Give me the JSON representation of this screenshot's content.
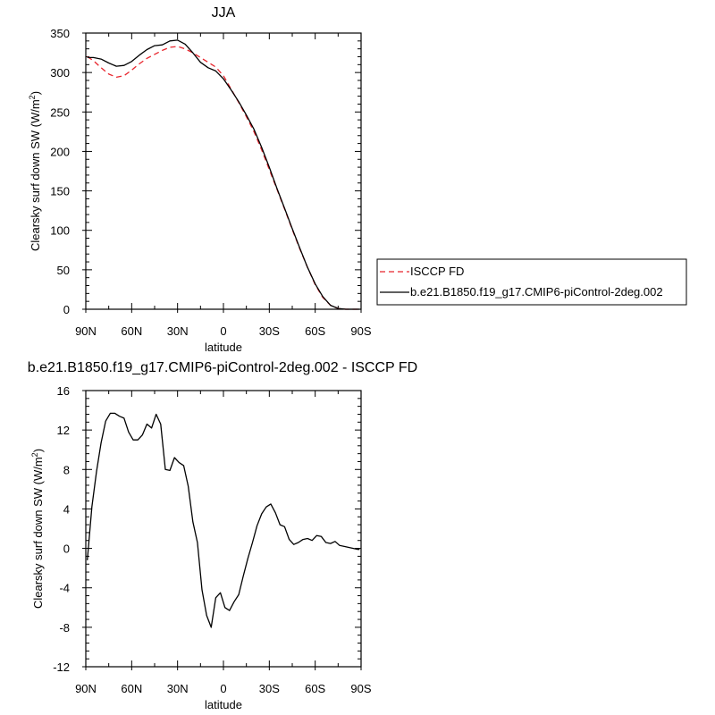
{
  "colors": {
    "model": "#000000",
    "obs": "#e8242c",
    "axis": "#000000"
  },
  "chart_data": [
    {
      "type": "line",
      "title": "JJA",
      "xlabel": "latitude",
      "ylabel": "Clearsky surf down SW (W/m",
      "ylabel_sup": "2",
      "ylabel_close": ")",
      "xlim": [
        -90,
        90
      ],
      "ylim": [
        0,
        350
      ],
      "x_tick_values": [
        -90,
        -60,
        -30,
        0,
        30,
        60,
        90
      ],
      "x_tick_labels": [
        "90N",
        "60N",
        "30N",
        "0",
        "30S",
        "60S",
        "90S"
      ],
      "y_tick_values": [
        0,
        50,
        100,
        150,
        200,
        250,
        300,
        350
      ],
      "y_tick_labels": [
        "0",
        "50",
        "100",
        "150",
        "200",
        "250",
        "300",
        "350"
      ],
      "legend_position": "right",
      "series": [
        {
          "name": "ISCCP FD",
          "style": "dashed",
          "color": "#e8242c",
          "x": [
            -89,
            -85,
            -80,
            -75,
            -70,
            -65,
            -60,
            -55,
            -50,
            -45,
            -40,
            -35,
            -30,
            -25,
            -20,
            -15,
            -10,
            -5,
            0,
            5,
            10,
            15,
            20,
            25,
            30,
            35,
            40,
            45,
            50,
            55,
            60,
            65,
            70,
            75,
            80,
            85,
            89
          ],
          "y": [
            320,
            315,
            306,
            298,
            294,
            296,
            303,
            311,
            318,
            323,
            328,
            332,
            333,
            330,
            325,
            319,
            313,
            307,
            296,
            279,
            262,
            244,
            225,
            202,
            177,
            152,
            127,
            101,
            76,
            53,
            31,
            15,
            5,
            1,
            0,
            0,
            0
          ]
        },
        {
          "name": "b.e21.B1850.f19_g17.CMIP6-piControl-2deg.002",
          "style": "solid",
          "color": "#000000",
          "x": [
            -89,
            -85,
            -80,
            -75,
            -70,
            -65,
            -60,
            -55,
            -50,
            -45,
            -40,
            -35,
            -30,
            -25,
            -20,
            -15,
            -10,
            -5,
            0,
            5,
            10,
            15,
            20,
            25,
            30,
            35,
            40,
            45,
            50,
            55,
            60,
            65,
            70,
            75,
            80,
            85,
            89
          ],
          "y": [
            319,
            319,
            317,
            312,
            308,
            309,
            314,
            322,
            329,
            334,
            335,
            340,
            341,
            336,
            325,
            313,
            306,
            302,
            292,
            278,
            263,
            246,
            228,
            205,
            180,
            153,
            128,
            102,
            77,
            53,
            32,
            16,
            5,
            1,
            0,
            0,
            0
          ]
        }
      ]
    },
    {
      "type": "line",
      "title": "b.e21.B1850.f19_g17.CMIP6-piControl-2deg.002 - ISCCP FD",
      "xlabel": "latitude",
      "ylabel": "Clearsky surf down SW (W/m",
      "ylabel_sup": "2",
      "ylabel_close": ")",
      "xlim": [
        -90,
        90
      ],
      "ylim": [
        -12,
        16
      ],
      "x_tick_values": [
        -90,
        -60,
        -30,
        0,
        30,
        60,
        90
      ],
      "x_tick_labels": [
        "90N",
        "60N",
        "30N",
        "0",
        "30S",
        "60S",
        "90S"
      ],
      "y_tick_values": [
        -12,
        -8,
        -4,
        0,
        4,
        8,
        12,
        16
      ],
      "y_tick_labels": [
        "-12",
        "-8",
        "-4",
        "0",
        "4",
        "8",
        "12",
        "16"
      ],
      "series": [
        {
          "style": "solid",
          "color": "#000000",
          "x": [
            -89,
            -86,
            -83,
            -80,
            -77,
            -74,
            -71,
            -68,
            -65,
            -62,
            -59,
            -56,
            -53,
            -50,
            -47,
            -44,
            -41,
            -38,
            -35,
            -32,
            -29,
            -26,
            -23,
            -20,
            -17,
            -14,
            -11,
            -8,
            -5,
            -2,
            1,
            4,
            7,
            10,
            13,
            16,
            19,
            22,
            25,
            28,
            31,
            34,
            37,
            40,
            43,
            46,
            49,
            52,
            55,
            58,
            61,
            64,
            67,
            70,
            73,
            76,
            79,
            82,
            85,
            88,
            89
          ],
          "y": [
            -1.2,
            4.2,
            7.8,
            10.7,
            12.9,
            13.7,
            13.7,
            13.4,
            13.2,
            11.8,
            11.0,
            11.0,
            11.5,
            12.6,
            12.2,
            13.6,
            12.6,
            8.0,
            7.9,
            9.2,
            8.7,
            8.4,
            6.3,
            2.7,
            0.6,
            -4.2,
            -6.8,
            -8.0,
            -5.0,
            -4.5,
            -6.0,
            -6.3,
            -5.4,
            -4.7,
            -2.8,
            -1.0,
            0.6,
            2.3,
            3.5,
            4.2,
            4.5,
            3.6,
            2.4,
            2.2,
            0.9,
            0.4,
            0.6,
            0.9,
            1.0,
            0.8,
            1.3,
            1.2,
            0.6,
            0.5,
            0.7,
            0.3,
            0.2,
            0.1,
            0.0,
            -0.1,
            -0.1
          ]
        }
      ]
    }
  ]
}
